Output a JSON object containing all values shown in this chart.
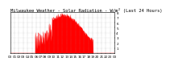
{
  "title": "Milwaukee Weather - Solar Radiation - W/m² (Last 24 Hours)",
  "bg_color": "#ffffff",
  "plot_bg_color": "#ffffff",
  "fill_color": "#ff0000",
  "line_color": "#ff0000",
  "grid_color": "#aaaaaa",
  "grid_style": ":",
  "ylim": [
    0,
    800
  ],
  "yticks": [
    100,
    200,
    300,
    400,
    500,
    600,
    700,
    800
  ],
  "ytick_labels": [
    "1",
    "2",
    "3",
    "4",
    "5",
    "6",
    "7",
    "8"
  ],
  "num_points": 288,
  "title_fontsize": 4.0,
  "tick_fontsize": 3.0,
  "num_xticks": 25
}
